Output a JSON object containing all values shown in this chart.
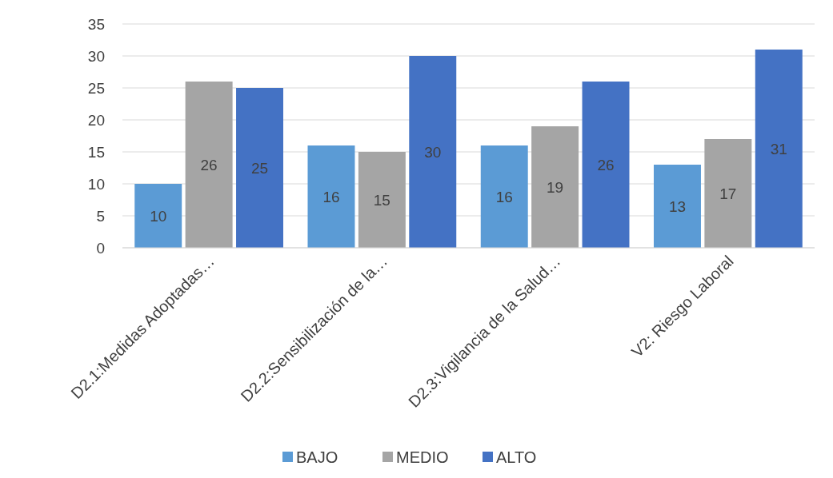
{
  "chart_data": {
    "type": "bar",
    "categories": [
      "D2.1:Medidas Adoptadas…",
      "D2.2:Sensibilización de la…",
      "D2.3:Vigilancia de la Salud…",
      "V2: Riesgo Laboral"
    ],
    "series": [
      {
        "name": "BAJO",
        "color": "#5b9bd5",
        "values": [
          10,
          16,
          16,
          13
        ]
      },
      {
        "name": "MEDIO",
        "color": "#a5a5a5",
        "values": [
          26,
          15,
          19,
          17
        ]
      },
      {
        "name": "ALTO",
        "color": "#4472c4",
        "values": [
          25,
          30,
          26,
          31
        ]
      }
    ],
    "ylim": [
      0,
      35
    ],
    "yticks": [
      0,
      5,
      10,
      15,
      20,
      25,
      30,
      35
    ],
    "grid": "y",
    "legend": "bottom",
    "data_labels": true
  }
}
